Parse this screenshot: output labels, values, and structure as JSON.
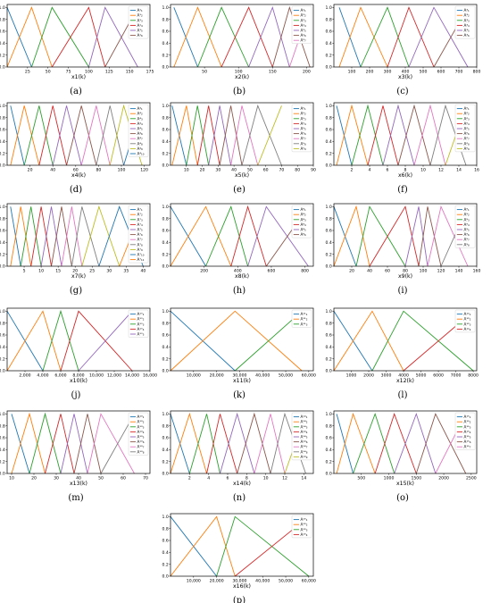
{
  "colors": [
    "#1f77b4",
    "#ff7f0e",
    "#2ca02c",
    "#d62728",
    "#9467bd",
    "#8c564b",
    "#e377c2",
    "#7f7f7f",
    "#bcbd22"
  ],
  "chart_data": [
    {
      "id": "a",
      "type": "line",
      "caption": "(a)",
      "xlabel": "x1(k)",
      "xlim": [
        0,
        175
      ],
      "xticks": [
        25,
        50,
        75,
        100,
        125,
        150,
        175
      ],
      "xtick_labels": [
        "25",
        "50",
        "75",
        "100",
        "125",
        "150",
        "175"
      ],
      "ylim": [
        0,
        1.05
      ],
      "yticks": [
        0,
        0.2,
        0.4,
        0.6,
        0.8,
        1.0
      ],
      "ytick_labels": [
        "0.0",
        "0.2",
        "0.4",
        "0.6",
        "0.8",
        "1.0"
      ],
      "peaks": [
        0,
        30,
        55,
        100,
        120,
        160
      ],
      "legend": [
        "A¹₁",
        "A¹₂",
        "A¹₃",
        "A¹₄",
        "A¹₅",
        "A¹₆"
      ]
    },
    {
      "id": "b",
      "type": "line",
      "caption": "(b)",
      "xlabel": "x2(k)",
      "xlim": [
        0,
        210
      ],
      "xticks": [
        50,
        100,
        150,
        200
      ],
      "xtick_labels": [
        "50",
        "100",
        "150",
        "200"
      ],
      "ylim": [
        0,
        1.05
      ],
      "yticks": [
        0,
        0.2,
        0.4,
        0.6,
        0.8,
        1.0
      ],
      "ytick_labels": [
        "0.0",
        "0.2",
        "0.4",
        "0.6",
        "0.8",
        "1.0"
      ],
      "peaks": [
        5,
        40,
        75,
        115,
        150,
        175,
        205
      ],
      "legend": [
        "A²₁",
        "A²₂",
        "A²₃",
        "A²₄",
        "A²₅",
        "A²₆",
        "A²₇"
      ]
    },
    {
      "id": "c",
      "type": "line",
      "caption": "(c)",
      "xlabel": "x3(k)",
      "xlim": [
        0,
        800
      ],
      "xticks": [
        100,
        200,
        300,
        400,
        500,
        600,
        700,
        800
      ],
      "xtick_labels": [
        "100",
        "200",
        "300",
        "400",
        "500",
        "600",
        "700",
        "800"
      ],
      "ylim": [
        0,
        1.05
      ],
      "yticks": [
        0,
        0.2,
        0.4,
        0.6,
        0.8,
        1.0
      ],
      "ytick_labels": [
        "0.0",
        "0.2",
        "0.4",
        "0.6",
        "0.8",
        "1.0"
      ],
      "peaks": [
        30,
        150,
        300,
        420,
        560,
        750
      ],
      "legend": [
        "A³₁",
        "A³₂",
        "A³₃",
        "A³₄",
        "A³₅",
        "A³₆"
      ]
    },
    {
      "id": "d",
      "type": "line",
      "caption": "(d)",
      "xlabel": "x4(k)",
      "xlim": [
        0,
        125
      ],
      "xticks": [
        20,
        40,
        60,
        80,
        100,
        120
      ],
      "xtick_labels": [
        "20",
        "40",
        "60",
        "80",
        "100",
        "120"
      ],
      "ylim": [
        0,
        1.05
      ],
      "yticks": [
        0,
        0.2,
        0.4,
        0.6,
        0.8,
        1.0
      ],
      "ytick_labels": [
        "0.0",
        "0.2",
        "0.4",
        "0.6",
        "0.8",
        "1.0"
      ],
      "peaks": [
        3,
        15,
        28,
        40,
        52,
        65,
        78,
        90,
        102,
        118
      ],
      "legend": [
        "A⁴₁",
        "A⁴₂",
        "A⁴₃",
        "A⁴₄",
        "A⁴₅",
        "A⁴₆",
        "A⁴₇",
        "A⁴₈",
        "A⁴₉",
        "A⁴₁₀"
      ]
    },
    {
      "id": "e",
      "type": "line",
      "caption": "(e)",
      "xlabel": "x5(k)",
      "xlim": [
        0,
        90
      ],
      "xticks": [
        10,
        20,
        30,
        40,
        50,
        60,
        70,
        80,
        90
      ],
      "xtick_labels": [
        "10",
        "20",
        "30",
        "40",
        "50",
        "60",
        "70",
        "80",
        "90"
      ],
      "ylim": [
        0,
        1.05
      ],
      "yticks": [
        0,
        0.2,
        0.4,
        0.6,
        0.8,
        1.0
      ],
      "ytick_labels": [
        "0.0",
        "0.2",
        "0.4",
        "0.6",
        "0.8",
        "1.0"
      ],
      "peaks": [
        1,
        10,
        17,
        24,
        31,
        38,
        45,
        55,
        70
      ],
      "legend": [
        "A⁵₁",
        "A⁵₂",
        "A⁵₃",
        "A⁵₄",
        "A⁵₅",
        "A⁵₆",
        "A⁵₇",
        "A⁵₈",
        "A⁵₉"
      ]
    },
    {
      "id": "f",
      "type": "line",
      "caption": "(f)",
      "xlabel": "x6(k)",
      "xlim": [
        0,
        16
      ],
      "xticks": [
        2,
        4,
        6,
        8,
        10,
        12,
        14,
        16
      ],
      "xtick_labels": [
        "2",
        "4",
        "6",
        "8",
        "10",
        "12",
        "14",
        "16"
      ],
      "ylim": [
        0,
        1.05
      ],
      "yticks": [
        0,
        0.2,
        0.4,
        0.6,
        0.8,
        1.0
      ],
      "ytick_labels": [
        "0.0",
        "0.2",
        "0.4",
        "0.6",
        "0.8",
        "1.0"
      ],
      "peaks": [
        0.3,
        2,
        3.8,
        5.5,
        7.2,
        9,
        10.8,
        12.5,
        14.8
      ],
      "legend": [
        "A⁶₁",
        "A⁶₂",
        "A⁶₃",
        "A⁶₄",
        "A⁶₅",
        "A⁶₆",
        "A⁶₇",
        "A⁶₈",
        "A⁶₉"
      ]
    },
    {
      "id": "g",
      "type": "line",
      "caption": "(g)",
      "xlabel": "x7(k)",
      "xlim": [
        0,
        42
      ],
      "xticks": [
        5,
        10,
        15,
        20,
        25,
        30,
        35,
        40
      ],
      "xtick_labels": [
        "5",
        "10",
        "15",
        "20",
        "25",
        "30",
        "35",
        "40"
      ],
      "ylim": [
        0,
        1.05
      ],
      "yticks": [
        0,
        0.2,
        0.4,
        0.6,
        0.8,
        1.0
      ],
      "ytick_labels": [
        "0.0",
        "0.2",
        "0.4",
        "0.6",
        "0.8",
        "1.0"
      ],
      "peaks": [
        1,
        4,
        7,
        10,
        13,
        16,
        19,
        22,
        27,
        33,
        40
      ],
      "legend": [
        "A⁷₁",
        "A⁷₂",
        "A⁷₃",
        "A⁷₄",
        "A⁷₅",
        "A⁷₆",
        "A⁷₇",
        "A⁷₈",
        "A⁷₉",
        "A⁷₁₀",
        "A⁷₁₁"
      ]
    },
    {
      "id": "h",
      "type": "line",
      "caption": "(h)",
      "xlabel": "x8(k)",
      "xlim": [
        0,
        850
      ],
      "xticks": [
        200,
        400,
        600,
        800
      ],
      "xtick_labels": [
        "200",
        "400",
        "600",
        "800"
      ],
      "ylim": [
        0,
        1.05
      ],
      "yticks": [
        0,
        0.2,
        0.4,
        0.6,
        0.8,
        1.0
      ],
      "ytick_labels": [
        "0.0",
        "0.2",
        "0.4",
        "0.6",
        "0.8",
        "1.0"
      ],
      "peaks": [
        0,
        210,
        360,
        460,
        570,
        820
      ],
      "legend": [
        "A⁸₁",
        "A⁸₂",
        "A⁸₃",
        "A⁸₄",
        "A⁸₅",
        "A⁸₆"
      ]
    },
    {
      "id": "i",
      "type": "line",
      "caption": "(i)",
      "xlabel": "x9(k)",
      "xlim": [
        0,
        160
      ],
      "xticks": [
        20,
        40,
        60,
        80,
        100,
        120,
        140,
        160
      ],
      "xtick_labels": [
        "20",
        "40",
        "60",
        "80",
        "100",
        "120",
        "140",
        "160"
      ],
      "ylim": [
        0,
        1.05
      ],
      "yticks": [
        0,
        0.2,
        0.4,
        0.6,
        0.8,
        1.0
      ],
      "ytick_labels": [
        "0.0",
        "0.2",
        "0.4",
        "0.6",
        "0.8",
        "1.0"
      ],
      "peaks": [
        0,
        25,
        40,
        80,
        95,
        105,
        120,
        150
      ],
      "legend": [
        "A⁹₁",
        "A⁹₂",
        "A⁹₃",
        "A⁹₄",
        "A⁹₅",
        "A⁹₆",
        "A⁹₇",
        "A⁹₈"
      ]
    },
    {
      "id": "j",
      "type": "line",
      "caption": "(j)",
      "xlabel": "x10(k)",
      "xlim": [
        0,
        16000
      ],
      "xticks": [
        2000,
        4000,
        6000,
        8000,
        10000,
        12000,
        14000,
        16000
      ],
      "xtick_labels": [
        "2,000",
        "4,000",
        "6,000",
        "8,000",
        "10,000",
        "12,000",
        "14,000",
        "16,000"
      ],
      "ylim": [
        0,
        1.05
      ],
      "yticks": [
        0,
        0.2,
        0.4,
        0.6,
        0.8,
        1.0
      ],
      "ytick_labels": [
        "0.0",
        "0.2",
        "0.4",
        "0.6",
        "0.8",
        "1.0"
      ],
      "peaks": [
        0,
        4000,
        6000,
        8000,
        14000
      ],
      "legend": [
        "A¹⁰₁",
        "A¹⁰₂",
        "A¹⁰₃",
        "A¹⁰₄",
        "A¹⁰₅"
      ]
    },
    {
      "id": "k",
      "type": "line",
      "caption": "(k)",
      "xlabel": "x11(k)",
      "xlim": [
        0,
        62000
      ],
      "xticks": [
        10000,
        20000,
        30000,
        40000,
        50000,
        60000
      ],
      "xtick_labels": [
        "10,000",
        "20,000",
        "30,000",
        "40,000",
        "50,000",
        "60,000"
      ],
      "ylim": [
        0,
        1.05
      ],
      "yticks": [
        0,
        0.2,
        0.4,
        0.6,
        0.8,
        1.0
      ],
      "ytick_labels": [
        "0.0",
        "0.2",
        "0.4",
        "0.6",
        "0.8",
        "1.0"
      ],
      "peaks": [
        0,
        28000,
        57000
      ],
      "legend": [
        "A¹¹₁",
        "A¹¹₂",
        "A¹¹₃"
      ]
    },
    {
      "id": "l",
      "type": "line",
      "caption": "(l)",
      "xlabel": "x12(k)",
      "xlim": [
        0,
        8200
      ],
      "xticks": [
        1000,
        2000,
        3000,
        4000,
        5000,
        6000,
        7000,
        8000
      ],
      "xtick_labels": [
        "1000",
        "2000",
        "3000",
        "4000",
        "5000",
        "6000",
        "7000",
        "8000"
      ],
      "ylim": [
        0,
        1.05
      ],
      "yticks": [
        0,
        0.2,
        0.4,
        0.6,
        0.8,
        1.0
      ],
      "ytick_labels": [
        "0.0",
        "0.2",
        "0.4",
        "0.6",
        "0.8",
        "1.0"
      ],
      "peaks": [
        0,
        2200,
        4000,
        8000
      ],
      "legend": [
        "A¹²₁",
        "A¹²₂",
        "A¹²₃",
        "A¹²₄"
      ]
    },
    {
      "id": "m",
      "type": "line",
      "caption": "(m)",
      "xlabel": "x13(k)",
      "xlim": [
        8,
        72
      ],
      "xticks": [
        10,
        20,
        30,
        40,
        50,
        60,
        70
      ],
      "xtick_labels": [
        "10",
        "20",
        "30",
        "40",
        "50",
        "60",
        "70"
      ],
      "ylim": [
        0,
        1.05
      ],
      "yticks": [
        0,
        0.2,
        0.4,
        0.6,
        0.8,
        1.0
      ],
      "ytick_labels": [
        "0.0",
        "0.2",
        "0.4",
        "0.6",
        "0.8",
        "1.0"
      ],
      "peaks": [
        10,
        18,
        25,
        32,
        38,
        44,
        50,
        65
      ],
      "legend": [
        "A¹³₁",
        "A¹³₂",
        "A¹³₃",
        "A¹³₄",
        "A¹³₅",
        "A¹³₆",
        "A¹³₇",
        "A¹³₈"
      ]
    },
    {
      "id": "n",
      "type": "line",
      "caption": "(n)",
      "xlabel": "x14(k)",
      "xlim": [
        0,
        15
      ],
      "xticks": [
        2,
        4,
        6,
        8,
        10,
        12,
        14
      ],
      "xtick_labels": [
        "2",
        "4",
        "6",
        "8",
        "10",
        "12",
        "14"
      ],
      "ylim": [
        0,
        1.05
      ],
      "yticks": [
        0,
        0.2,
        0.4,
        0.6,
        0.8,
        1.0
      ],
      "ytick_labels": [
        "0.0",
        "0.2",
        "0.4",
        "0.6",
        "0.8",
        "1.0"
      ],
      "peaks": [
        0,
        2,
        3.8,
        5.2,
        7,
        8.8,
        10.5,
        12,
        14.2
      ],
      "legend": [
        "A¹⁴₁",
        "A¹⁴₂",
        "A¹⁴₃",
        "A¹⁴₄",
        "A¹⁴₅",
        "A¹⁴₆",
        "A¹⁴₇",
        "A¹⁴₈",
        "A¹⁴₉"
      ]
    },
    {
      "id": "o",
      "type": "line",
      "caption": "(o)",
      "xlabel": "x15(k)",
      "xlim": [
        0,
        2600
      ],
      "xticks": [
        500,
        1000,
        1500,
        2000,
        2500
      ],
      "xtick_labels": [
        "500",
        "1000",
        "1500",
        "2000",
        "2500"
      ],
      "ylim": [
        0,
        1.05
      ],
      "yticks": [
        0,
        0.2,
        0.4,
        0.6,
        0.8,
        1.0
      ],
      "ytick_labels": [
        "0.0",
        "0.2",
        "0.4",
        "0.6",
        "0.8",
        "1.0"
      ],
      "peaks": [
        50,
        350,
        750,
        1100,
        1500,
        1850,
        2400
      ],
      "legend": [
        "A¹⁵₁",
        "A¹⁵₂",
        "A¹⁵₃",
        "A¹⁵₄",
        "A¹⁵₅",
        "A¹⁵₆",
        "A¹⁵₇"
      ]
    },
    {
      "id": "p",
      "type": "line",
      "caption": "(p)",
      "xlabel": "x16(k)",
      "xlim": [
        0,
        62000
      ],
      "xticks": [
        10000,
        20000,
        30000,
        40000,
        50000,
        60000
      ],
      "xtick_labels": [
        "10,000",
        "20,000",
        "30,000",
        "40,000",
        "50,000",
        "60,000"
      ],
      "ylim": [
        0,
        1.05
      ],
      "yticks": [
        0,
        0.2,
        0.4,
        0.6,
        0.8,
        1.0
      ],
      "ytick_labels": [
        "0.0",
        "0.2",
        "0.4",
        "0.6",
        "0.8",
        "1.0"
      ],
      "peaks": [
        0,
        20000,
        28000,
        60000
      ],
      "legend": [
        "A¹⁶₁",
        "A¹⁶₂",
        "A¹⁶₃",
        "A¹⁶₄"
      ]
    }
  ]
}
